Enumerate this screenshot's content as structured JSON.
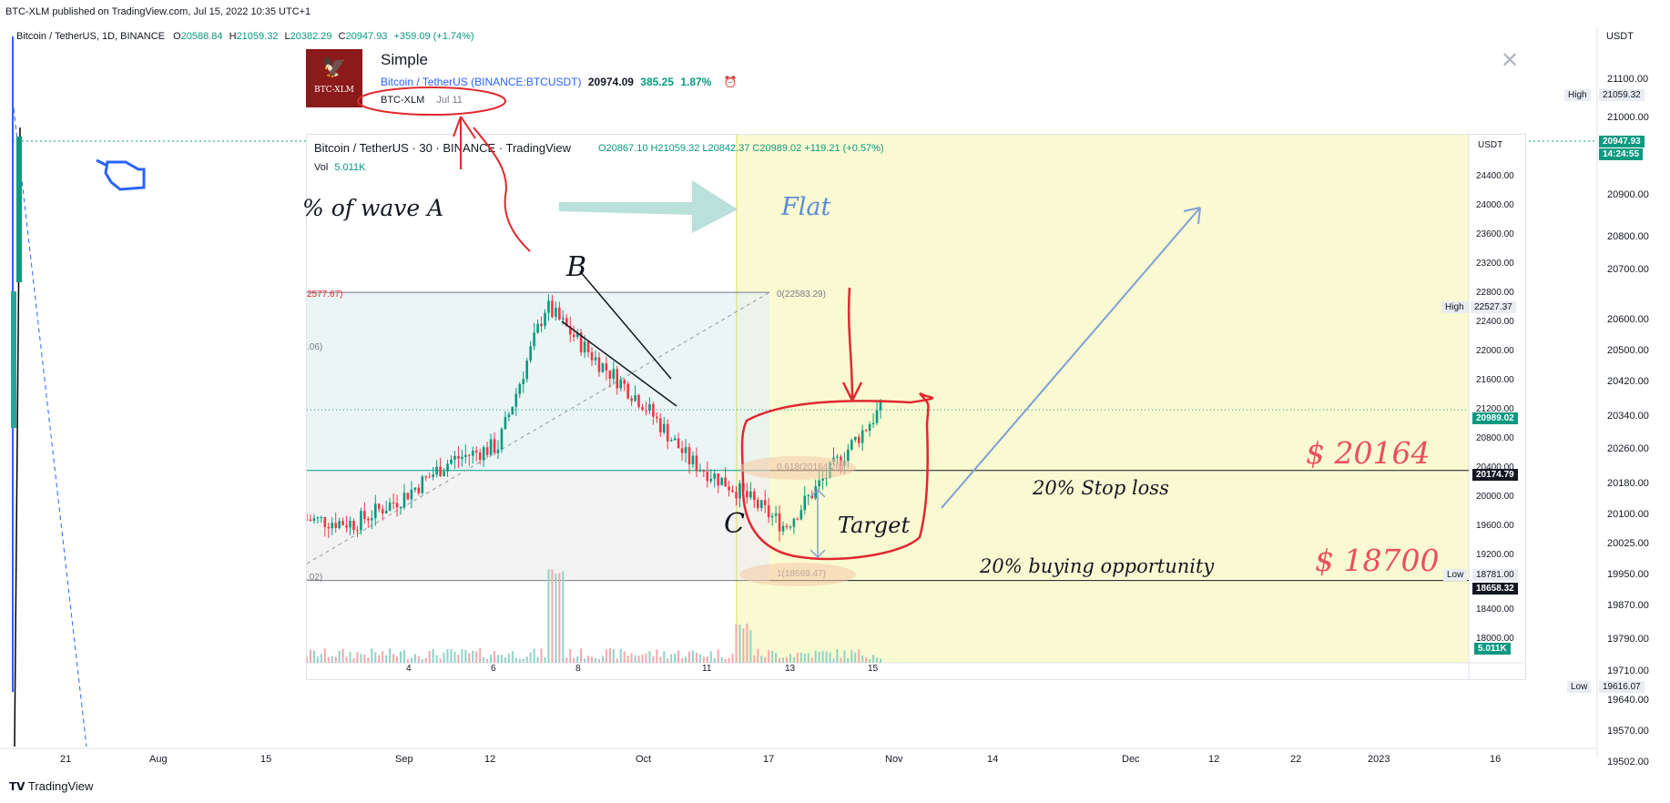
{
  "header": {
    "published": "BTC-XLM published on TradingView.com, Jul 15, 2022 10:35 UTC+1",
    "symbol": "Bitcoin / TetherUS, 1D, BINANCE",
    "o_label": "O",
    "o_val": "20588.84",
    "h_label": "H",
    "h_val": "21059.32",
    "l_label": "L",
    "l_val": "20382.29",
    "c_label": "C",
    "c_val": "20947.93",
    "change": "+359.09 (+1.74%)",
    "currency": "USDT"
  },
  "idea_card": {
    "title": "Simple",
    "symbol_link": "Bitcoin / TetherUS",
    "exchange": "(BINANCE:BTCUSDT)",
    "price": "20974.09",
    "change_abs": "385.25",
    "change_pct": "1.87%",
    "author": "BTC-XLM",
    "date": "Jul 11",
    "logo_text": "BTC-XLM"
  },
  "inset": {
    "symbol": "Bitcoin / TetherUS · 30 · BINANCE · TradingView",
    "ohlc": "O20867.10 H21059.32 L20842.37 C20989.02 +119.21 (+0.57%)",
    "vol_label": "Vol",
    "vol_val": "5.011K",
    "currency": "USDT",
    "y_ticks": [
      "24400.00",
      "24000.00",
      "23600.00",
      "23200.00",
      "22800.00",
      "22400.00",
      "22000.00",
      "21600.00",
      "21200.00",
      "20800.00",
      "20400.00",
      "20000.00",
      "19600.00",
      "19200.00",
      "18400.00",
      "18000.00"
    ],
    "x_ticks": [
      "4",
      "6",
      "8",
      "11",
      "13",
      "15"
    ],
    "high_label": "High",
    "high_val": "22527.37",
    "low_label": "Low",
    "low_val": "18781.00",
    "last_price": "20989.02",
    "level_20164": "20174.79",
    "level_18658": "18658.32",
    "vol_tag": "5.011K",
    "fib_0": "0(22583.29)",
    "fib_618": "0.618(20164.26)",
    "fib_1": "1(18669.47)",
    "fib_left_top": "2577.67)",
    "fib_left_mid": ".06)",
    "fib_left_bot": ".02)"
  },
  "annotations": {
    "wave_text": "% of wave A",
    "flat": "Flat",
    "b": "B",
    "c": "C",
    "target": "Target",
    "stop_price": "$ 20164",
    "stop_text": "20% Stop loss",
    "buy_price": "$ 18700",
    "buy_text": "20% buying opportunity"
  },
  "main_axis": {
    "y_ticks": [
      "21100.00",
      "21000.00",
      "20900.00",
      "20800.00",
      "20700.00",
      "20600.00",
      "20500.00",
      "20420.00",
      "20340.00",
      "20260.00",
      "20180.00",
      "20100.00",
      "20025.00",
      "19950.00",
      "19870.00",
      "19790.00",
      "19710.00",
      "19640.00",
      "19570.00",
      "19502.00"
    ],
    "x_ticks": [
      "21",
      "Aug",
      "15",
      "Sep",
      "12",
      "Oct",
      "17",
      "Nov",
      "14",
      "Dec",
      "12",
      "22",
      "2023",
      "16"
    ],
    "high_label": "High",
    "high_val": "21059.32",
    "low_label": "Low",
    "low_val": "19616.07",
    "last_price": "20947.93",
    "countdown": "14:24:55"
  },
  "footer": {
    "brand": "TradingView"
  },
  "colors": {
    "green": "#089981",
    "red": "#e0282f",
    "blue": "#2962ff",
    "teal_arrow": "#a8d8cf",
    "yellow_zone": "#fafad2",
    "annot_red": "#e8505b"
  },
  "chart_data": {
    "type": "line",
    "title": "Simple",
    "xlabel": "",
    "ylabel": "",
    "x": [
      "3",
      "4",
      "5",
      "6",
      "7",
      "8",
      "9",
      "10",
      "11",
      "12",
      "13",
      "14",
      "15"
    ],
    "series": [
      {
        "values": [
          19500,
          19450,
          19800,
          20300,
          20500,
          22400,
          21700,
          21100,
          20300,
          19900,
          19400,
          20200,
          21000
        ]
      }
    ],
    "ylim": [
      17800,
      24600
    ],
    "levels": {
      "fib_0": 22583.29,
      "fib_0_618": 20164.26,
      "fib_1": 18669.47,
      "high": 22527.37,
      "low": 18781.0
    }
  }
}
